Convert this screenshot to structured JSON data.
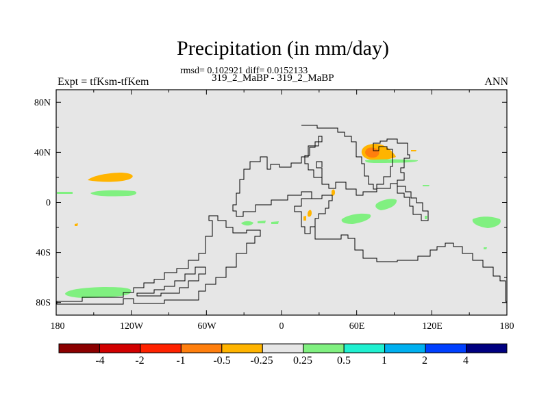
{
  "chart_data": {
    "type": "contour-map",
    "title": "Precipitation (in mm/day)",
    "stats_line": "rmsd= 0.102921 diff= 0.0152133",
    "comparison_line": "319_2_MaBP - 319_2_MaBP",
    "experiment_label": "Expt = tfKsm-tfKem",
    "season_label": "ANN",
    "x_axis": {
      "range": [
        -180,
        180
      ],
      "ticks": [
        -180,
        -120,
        -60,
        0,
        60,
        120,
        180
      ],
      "tick_labels": [
        "180",
        "120W",
        "60W",
        "0",
        "60E",
        "120E",
        "180"
      ]
    },
    "y_axis": {
      "range": [
        -90,
        90
      ],
      "ticks": [
        80,
        40,
        0,
        -40,
        -80
      ],
      "tick_labels": [
        "80N",
        "40N",
        "0",
        "40S",
        "80S"
      ]
    },
    "colorbar": {
      "levels": [
        "-4",
        "-2",
        "-1",
        "-0.5",
        "-0.25",
        "0.25",
        "0.5",
        "1",
        "2",
        "4"
      ],
      "colors": [
        "#8b0000",
        "#d10000",
        "#ff2200",
        "#ff7f0e",
        "#ffb400",
        "#e6e6e6",
        "#80f080",
        "#20f0d0",
        "#00b0f0",
        "#0040ff",
        "#000080"
      ]
    },
    "anomalies": [
      {
        "lon": -138,
        "lat": 20,
        "sign": "negative",
        "bin": "-0.5 to -0.25"
      },
      {
        "lon": -176,
        "lat": 8,
        "sign": "positive",
        "bin": "0.25 to 0.5"
      },
      {
        "lon": -140,
        "lat": 7,
        "sign": "positive",
        "bin": "0.25 to 0.5"
      },
      {
        "lon": -165,
        "lat": -18,
        "sign": "negative",
        "bin": "-0.5 to -0.25"
      },
      {
        "lon": -148,
        "lat": -73,
        "sign": "positive",
        "bin": "0.25 to 0.5"
      },
      {
        "lon": 72,
        "lat": 39,
        "sign": "negative",
        "bin": "-2 to -0.5"
      },
      {
        "lon": 82,
        "lat": 32,
        "sign": "positive",
        "bin": "0.25 to 0.5"
      },
      {
        "lon": 45,
        "lat": 7,
        "sign": "negative",
        "bin": "-0.5 to -0.25"
      },
      {
        "lon": 22,
        "lat": -10,
        "sign": "negative",
        "bin": "-0.5 to -0.25"
      },
      {
        "lon": 80,
        "lat": -2,
        "sign": "positive",
        "bin": "0.25 to 0.5"
      },
      {
        "lon": 63,
        "lat": -15,
        "sign": "positive",
        "bin": "0.25 to 0.5"
      },
      {
        "lon": 158,
        "lat": -17,
        "sign": "positive",
        "bin": "0.25 to 0.5"
      },
      {
        "lon": -30,
        "lat": -18,
        "sign": "positive",
        "bin": "0.25 to 0.5"
      }
    ]
  }
}
